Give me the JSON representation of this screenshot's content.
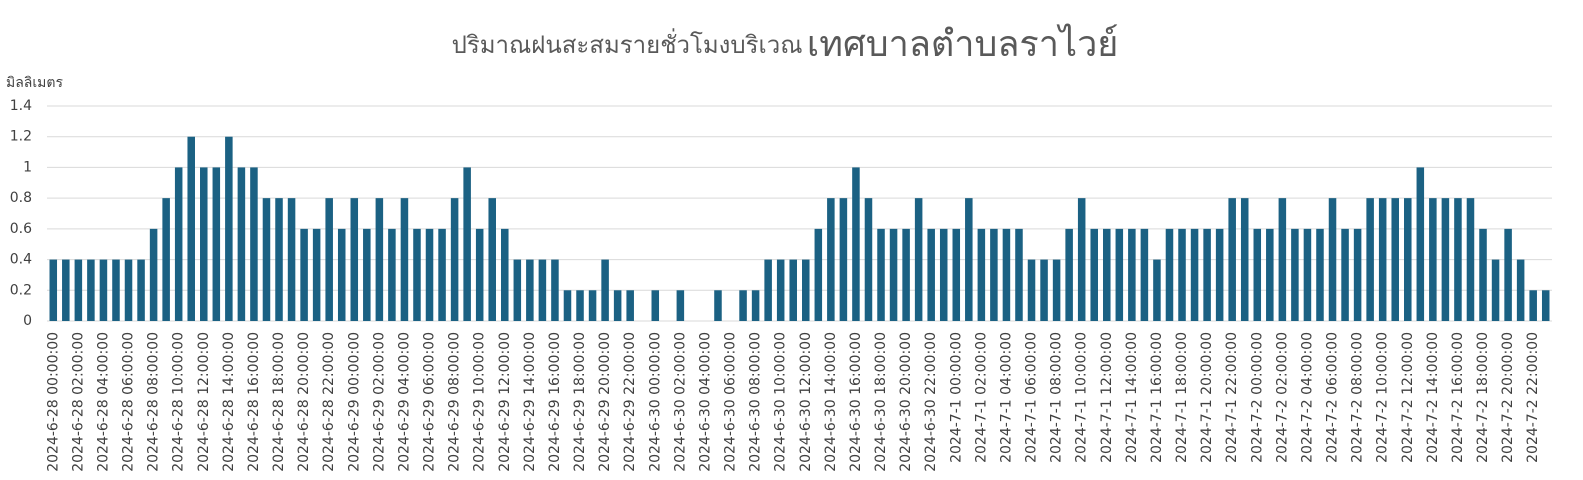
{
  "chart_data": {
    "type": "bar",
    "title_parts": [
      "ปริมาณฝนสะสมรายชั่วโมงบริเวณ",
      "เทศบาลตำบลราไวย์"
    ],
    "y_label": "มิลลิเมตร",
    "color": "#1b6183",
    "ylim": [
      0,
      1.4
    ],
    "yticks": [
      0,
      0.2,
      0.4,
      0.6,
      0.8,
      1,
      1.2,
      1.4
    ],
    "grid": true,
    "categories": [
      "2024-6-28 00:00:00",
      null,
      "2024-6-28 02:00:00",
      null,
      "2024-6-28 04:00:00",
      null,
      "2024-6-28 06:00:00",
      null,
      "2024-6-28 08:00:00",
      null,
      "2024-6-28 10:00:00",
      null,
      "2024-6-28 12:00:00",
      null,
      "2024-6-28 14:00:00",
      null,
      "2024-6-28 16:00:00",
      null,
      "2024-6-28 18:00:00",
      null,
      "2024-6-28 20:00:00",
      null,
      "2024-6-28 22:00:00",
      null,
      "2024-6-29 00:00:00",
      null,
      "2024-6-29 02:00:00",
      null,
      "2024-6-29 04:00:00",
      null,
      "2024-6-29 06:00:00",
      null,
      "2024-6-29 08:00:00",
      null,
      "2024-6-29 10:00:00",
      null,
      "2024-6-29 12:00:00",
      null,
      "2024-6-29 14:00:00",
      null,
      "2024-6-29 16:00:00",
      null,
      "2024-6-29 18:00:00",
      null,
      "2024-6-29 20:00:00",
      null,
      "2024-6-29 22:00:00",
      null,
      "2024-6-30 00:00:00",
      null,
      "2024-6-30 02:00:00",
      null,
      "2024-6-30 04:00:00",
      null,
      "2024-6-30 06:00:00",
      null,
      "2024-6-30 08:00:00",
      null,
      "2024-6-30 10:00:00",
      null,
      "2024-6-30 12:00:00",
      null,
      "2024-6-30 14:00:00",
      null,
      "2024-6-30 16:00:00",
      null,
      "2024-6-30 18:00:00",
      null,
      "2024-6-30 20:00:00",
      null,
      "2024-6-30 22:00:00",
      null,
      "2024-7-1 00:00:00",
      null,
      "2024-7-1 02:00:00",
      null,
      "2024-7-1 04:00:00",
      null,
      "2024-7-1 06:00:00",
      null,
      "2024-7-1 08:00:00",
      null,
      "2024-7-1 10:00:00",
      null,
      "2024-7-1 12:00:00",
      null,
      "2024-7-1 14:00:00",
      null,
      "2024-7-1 16:00:00",
      null,
      "2024-7-1 18:00:00",
      null,
      "2024-7-1 20:00:00",
      null,
      "2024-7-1 22:00:00",
      null,
      "2024-7-2 00:00:00",
      null,
      "2024-7-2 02:00:00",
      null,
      "2024-7-2 04:00:00",
      null,
      "2024-7-2 06:00:00",
      null,
      "2024-7-2 08:00:00",
      null,
      "2024-7-2 10:00:00",
      null,
      "2024-7-2 12:00:00",
      null,
      "2024-7-2 14:00:00",
      null,
      "2024-7-2 16:00:00",
      null,
      "2024-7-2 18:00:00",
      null,
      "2024-7-2 20:00:00",
      null,
      "2024-7-2 22:00:00",
      null
    ],
    "values": [
      0.4,
      0.4,
      0.4,
      0.4,
      0.4,
      0.4,
      0.4,
      0.4,
      0.6,
      0.8,
      1,
      1.2,
      1,
      1,
      1.2,
      1,
      1,
      0.8,
      0.8,
      0.8,
      0.6,
      0.6,
      0.8,
      0.6,
      0.8,
      0.6,
      0.8,
      0.6,
      0.8,
      0.6,
      0.6,
      0.6,
      0.8,
      1,
      0.6,
      0.8,
      0.6,
      0.4,
      0.4,
      0.4,
      0.4,
      0.2,
      0.2,
      0.2,
      0.4,
      0.2,
      0.2,
      0,
      0.2,
      0,
      0.2,
      0,
      0,
      0.2,
      0,
      0.2,
      0.2,
      0.4,
      0.4,
      0.4,
      0.4,
      0.6,
      0.8,
      0.8,
      1,
      0.8,
      0.6,
      0.6,
      0.6,
      0.8,
      0.6,
      0.6,
      0.6,
      0.8,
      0.6,
      0.6,
      0.6,
      0.6,
      0.4,
      0.4,
      0.4,
      0.6,
      0.8,
      0.6,
      0.6,
      0.6,
      0.6,
      0.6,
      0.4,
      0.6,
      0.6,
      0.6,
      0.6,
      0.6,
      0.8,
      0.8,
      0.6,
      0.6,
      0.8,
      0.6,
      0.6,
      0.6,
      0.8,
      0.6,
      0.6,
      0.8,
      0.8,
      0.8,
      0.8,
      1,
      0.8,
      0.8,
      0.8,
      0.8,
      0.6,
      0.4,
      0.6,
      0.4,
      0.2,
      0.2
    ]
  }
}
